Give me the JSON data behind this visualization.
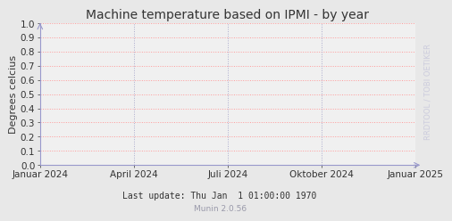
{
  "title": "Machine temperature based on IPMI - by year",
  "ylabel": "Degrees celcius",
  "background_color": "#e8e8e8",
  "plot_bg_color": "#f0f0f0",
  "grid_color_h": "#ff9999",
  "grid_color_v": "#aaaacc",
  "axis_color": "#9999cc",
  "title_fontsize": 10,
  "label_fontsize": 8,
  "tick_fontsize": 7.5,
  "ylim": [
    0.0,
    1.0
  ],
  "yticks": [
    0.0,
    0.1,
    0.2,
    0.3,
    0.4,
    0.5,
    0.6,
    0.7,
    0.8,
    0.9,
    1.0
  ],
  "xtick_labels": [
    "Januar 2024",
    "April 2024",
    "Juli 2024",
    "Oktober 2024",
    "Januar 2025"
  ],
  "xtick_positions": [
    0.0,
    0.25,
    0.5,
    0.75,
    1.0
  ],
  "footer_text": "Last update: Thu Jan  1 01:00:00 1970",
  "munin_text": "Munin 2.0.56",
  "watermark": "RRDTOOL / TOBI OETIKER",
  "footer_fontsize": 7,
  "munin_fontsize": 6.5,
  "watermark_fontsize": 6,
  "text_color": "#333333",
  "munin_color": "#9999aa",
  "watermark_color": "#ccccdd"
}
